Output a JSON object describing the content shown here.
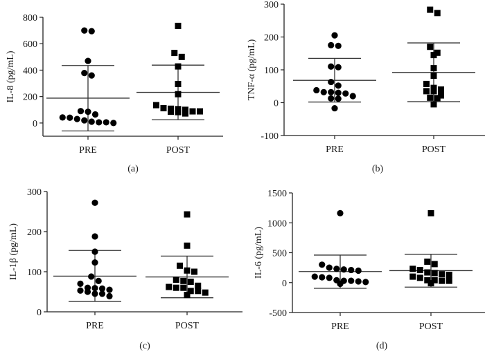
{
  "chart_data": [
    {
      "type": "scatter",
      "panel_label": "(a)",
      "ylabel": "IL-8 (pg/mL)",
      "ylim": [
        -100,
        800
      ],
      "yticks": [
        0,
        200,
        400,
        600,
        800
      ],
      "categories": [
        "PRE",
        "POST"
      ],
      "series": [
        {
          "name": "PRE",
          "marker": "circle",
          "values": [
            695,
            700,
            470,
            360,
            378,
            85,
            65,
            90,
            40,
            20,
            5,
            0,
            5,
            10,
            30,
            42
          ],
          "mean": 188,
          "sd_upper": 435,
          "sd_lower": -60
        },
        {
          "name": "POST",
          "marker": "square",
          "values": [
            735,
            530,
            500,
            428,
            295,
            218,
            135,
            112,
            105,
            88,
            85,
            72,
            82,
            88,
            100,
            108
          ],
          "mean": 232,
          "sd_upper": 438,
          "sd_lower": 25
        }
      ]
    },
    {
      "type": "scatter",
      "panel_label": "(b)",
      "ylabel": "TNF-α (pg/mL)",
      "ylim": [
        -100,
        300
      ],
      "yticks": [
        -100,
        0,
        100,
        200,
        300
      ],
      "categories": [
        "PRE",
        "POST"
      ],
      "series": [
        {
          "name": "PRE",
          "marker": "circle",
          "values": [
            205,
            175,
            173,
            108,
            110,
            63,
            52,
            38,
            32,
            28,
            13,
            12,
            20,
            30,
            32,
            -17
          ],
          "mean": 68,
          "sd_upper": 135,
          "sd_lower": 2
        },
        {
          "name": "POST",
          "marker": "square",
          "values": [
            283,
            273,
            170,
            145,
            152,
            105,
            82,
            57,
            40,
            35,
            15,
            22,
            -5,
            14,
            35,
            45
          ],
          "mean": 92,
          "sd_upper": 182,
          "sd_lower": 3
        }
      ]
    },
    {
      "type": "scatter",
      "panel_label": "(c)",
      "ylabel": "IL-1β (pg/mL)",
      "ylim": [
        0,
        300
      ],
      "yticks": [
        0,
        100,
        200,
        300
      ],
      "categories": [
        "PRE",
        "POST"
      ],
      "series": [
        {
          "name": "PRE",
          "marker": "circle",
          "values": [
            272,
            188,
            150,
            123,
            88,
            70,
            53,
            45,
            58,
            39,
            60,
            45,
            50,
            77,
            55,
            59
          ],
          "mean": 89,
          "sd_upper": 153,
          "sd_lower": 26
        },
        {
          "name": "POST",
          "marker": "square",
          "values": [
            243,
            165,
            115,
            80,
            100,
            103,
            75,
            60,
            60,
            52,
            62,
            42,
            48,
            65,
            52,
            77
          ],
          "mean": 87,
          "sd_upper": 139,
          "sd_lower": 35
        }
      ]
    },
    {
      "type": "scatter",
      "panel_label": "(d)",
      "ylabel": "IL-6 (pg/mL)",
      "ylim": [
        -500,
        1500
      ],
      "yticks": [
        -500,
        0,
        500,
        1000,
        1500
      ],
      "categories": [
        "PRE",
        "POST"
      ],
      "series": [
        {
          "name": "PRE",
          "marker": "circle",
          "values": [
            1160,
            300,
            220,
            200,
            230,
            250,
            210,
            100,
            80,
            30,
            10,
            -20,
            20,
            30,
            40,
            90
          ],
          "mean": 185,
          "sd_upper": 460,
          "sd_lower": -95
        },
        {
          "name": "POST",
          "marker": "square",
          "values": [
            1160,
            230,
            170,
            100,
            310,
            350,
            140,
            130,
            160,
            210,
            80,
            40,
            30,
            -10,
            30,
            40
          ],
          "mean": 200,
          "sd_upper": 475,
          "sd_lower": -75
        }
      ]
    }
  ]
}
